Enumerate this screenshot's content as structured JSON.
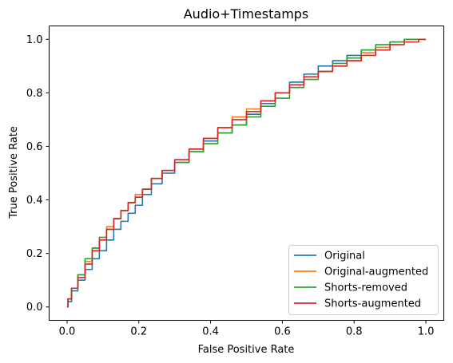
{
  "chart_data": {
    "type": "line",
    "title": "Audio+Timestamps",
    "xlabel": "False Positive Rate",
    "ylabel": "True Positive Rate",
    "xlim": [
      -0.05,
      1.05
    ],
    "ylim": [
      -0.05,
      1.05
    ],
    "xticks": [
      0.0,
      0.2,
      0.4,
      0.6,
      0.8,
      1.0
    ],
    "xtick_labels": [
      "0.0",
      "0.2",
      "0.4",
      "0.6",
      "0.8",
      "1.0"
    ],
    "yticks": [
      0.0,
      0.2,
      0.4,
      0.6,
      0.8,
      1.0
    ],
    "ytick_labels": [
      "0.0",
      "0.2",
      "0.4",
      "0.6",
      "0.8",
      "1.0"
    ],
    "grid": false,
    "legend_position": "lower-right",
    "series": [
      {
        "name": "Original",
        "color": "#1f77b4",
        "x": [
          0.0,
          0.005,
          0.02,
          0.04,
          0.06,
          0.08,
          0.1,
          0.12,
          0.14,
          0.16,
          0.18,
          0.2,
          0.22,
          0.25,
          0.28,
          0.32,
          0.36,
          0.4,
          0.44,
          0.48,
          0.52,
          0.56,
          0.6,
          0.64,
          0.68,
          0.72,
          0.76,
          0.8,
          0.84,
          0.88,
          0.92,
          0.96,
          1.0
        ],
        "y": [
          0.0,
          0.02,
          0.06,
          0.1,
          0.14,
          0.18,
          0.21,
          0.25,
          0.29,
          0.32,
          0.35,
          0.38,
          0.42,
          0.46,
          0.5,
          0.54,
          0.58,
          0.62,
          0.65,
          0.68,
          0.72,
          0.76,
          0.8,
          0.84,
          0.87,
          0.9,
          0.92,
          0.94,
          0.96,
          0.97,
          0.99,
          1.0,
          1.0
        ]
      },
      {
        "name": "Original-augmented",
        "color": "#ff7f0e",
        "x": [
          0.0,
          0.005,
          0.02,
          0.04,
          0.06,
          0.08,
          0.1,
          0.12,
          0.14,
          0.16,
          0.18,
          0.2,
          0.22,
          0.25,
          0.28,
          0.32,
          0.36,
          0.4,
          0.44,
          0.48,
          0.52,
          0.56,
          0.6,
          0.64,
          0.68,
          0.72,
          0.76,
          0.8,
          0.84,
          0.88,
          0.92,
          0.96,
          1.0
        ],
        "y": [
          0.0,
          0.03,
          0.07,
          0.12,
          0.17,
          0.22,
          0.26,
          0.3,
          0.33,
          0.36,
          0.39,
          0.42,
          0.44,
          0.48,
          0.51,
          0.55,
          0.59,
          0.63,
          0.67,
          0.71,
          0.74,
          0.77,
          0.8,
          0.83,
          0.86,
          0.88,
          0.9,
          0.92,
          0.95,
          0.97,
          0.99,
          1.0,
          1.0
        ]
      },
      {
        "name": "Shorts-removed",
        "color": "#2ca02c",
        "x": [
          0.0,
          0.005,
          0.02,
          0.04,
          0.06,
          0.08,
          0.1,
          0.12,
          0.14,
          0.16,
          0.18,
          0.2,
          0.22,
          0.25,
          0.28,
          0.32,
          0.36,
          0.4,
          0.44,
          0.48,
          0.52,
          0.56,
          0.6,
          0.64,
          0.68,
          0.72,
          0.76,
          0.8,
          0.84,
          0.88,
          0.92,
          0.96,
          1.0
        ],
        "y": [
          0.0,
          0.03,
          0.07,
          0.12,
          0.18,
          0.22,
          0.26,
          0.29,
          0.33,
          0.36,
          0.39,
          0.41,
          0.44,
          0.48,
          0.51,
          0.54,
          0.58,
          0.61,
          0.65,
          0.68,
          0.71,
          0.75,
          0.78,
          0.82,
          0.85,
          0.88,
          0.91,
          0.93,
          0.96,
          0.98,
          0.99,
          1.0,
          1.0
        ]
      },
      {
        "name": "Shorts-augmented",
        "color": "#d62728",
        "x": [
          0.0,
          0.005,
          0.02,
          0.04,
          0.06,
          0.08,
          0.1,
          0.12,
          0.14,
          0.16,
          0.18,
          0.2,
          0.22,
          0.25,
          0.28,
          0.32,
          0.36,
          0.4,
          0.44,
          0.48,
          0.52,
          0.56,
          0.6,
          0.64,
          0.68,
          0.72,
          0.76,
          0.8,
          0.84,
          0.88,
          0.92,
          0.96,
          1.0
        ],
        "y": [
          0.0,
          0.03,
          0.07,
          0.11,
          0.16,
          0.21,
          0.25,
          0.29,
          0.33,
          0.36,
          0.39,
          0.41,
          0.44,
          0.48,
          0.51,
          0.55,
          0.59,
          0.63,
          0.67,
          0.7,
          0.73,
          0.77,
          0.8,
          0.83,
          0.86,
          0.88,
          0.9,
          0.92,
          0.94,
          0.96,
          0.98,
          0.99,
          1.0
        ]
      }
    ]
  }
}
